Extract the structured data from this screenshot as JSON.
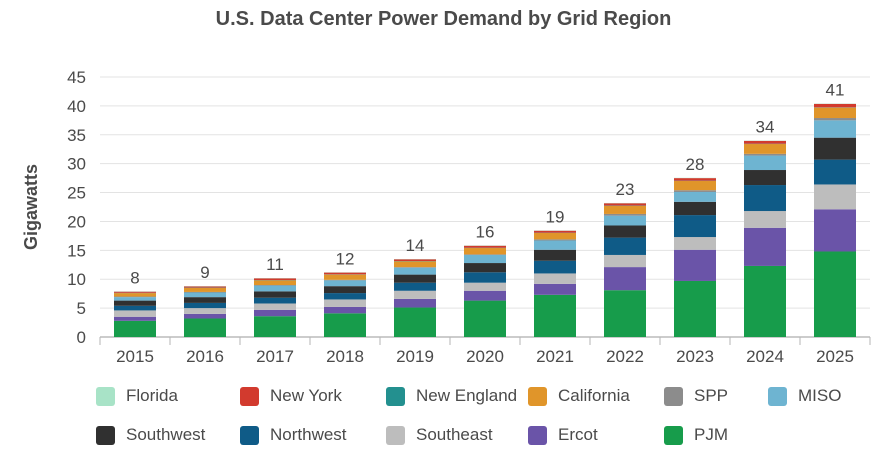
{
  "chart_data": {
    "type": "bar",
    "stacked": true,
    "title": "U.S. Data Center Power Demand by Grid Region",
    "ylabel": "Gigawatts",
    "xlabel": "",
    "ylim": [
      0,
      45
    ],
    "yticks": [
      "0",
      "5",
      "10",
      "15",
      "20",
      "25",
      "30",
      "35",
      "40",
      "45"
    ],
    "grid": true,
    "legend_position": "bottom",
    "categories": [
      "2015",
      "2016",
      "2017",
      "2018",
      "2019",
      "2020",
      "2021",
      "2022",
      "2023",
      "2024",
      "2025"
    ],
    "totals": [
      "8",
      "9",
      "11",
      "12",
      "14",
      "16",
      "19",
      "23",
      "28",
      "34",
      "41"
    ],
    "series": [
      {
        "name": "PJM",
        "color": "#179c4b",
        "values": [
          2.8,
          3.2,
          3.6,
          4.1,
          5.1,
          6.3,
          7.3,
          8.1,
          9.7,
          12.3,
          14.8
        ]
      },
      {
        "name": "Ercot",
        "color": "#6a54a8",
        "values": [
          0.7,
          0.8,
          1.1,
          1.1,
          1.5,
          1.7,
          1.9,
          4.0,
          5.4,
          6.6,
          7.3
        ]
      },
      {
        "name": "Southeast",
        "color": "#bdbdbd",
        "values": [
          1.1,
          1.0,
          1.1,
          1.3,
          1.4,
          1.4,
          1.8,
          2.1,
          2.2,
          2.9,
          4.3
        ]
      },
      {
        "name": "Northwest",
        "color": "#0f5b87",
        "values": [
          0.8,
          0.9,
          1.0,
          1.1,
          1.4,
          1.8,
          2.2,
          3.0,
          3.8,
          4.5,
          4.3
        ]
      },
      {
        "name": "Southwest",
        "color": "#303030",
        "values": [
          0.9,
          1.0,
          1.1,
          1.2,
          1.4,
          1.6,
          1.9,
          2.1,
          2.3,
          2.6,
          3.8
        ]
      },
      {
        "name": "MISO",
        "color": "#6eb4d1",
        "values": [
          0.6,
          0.8,
          1.0,
          1.0,
          1.2,
          1.4,
          1.6,
          1.7,
          1.7,
          2.5,
          3.0
        ]
      },
      {
        "name": "SPP",
        "color": "#8c8c8c",
        "values": [
          0.1,
          0.1,
          0.1,
          0.1,
          0.1,
          0.1,
          0.2,
          0.3,
          0.3,
          0.3,
          0.4
        ]
      },
      {
        "name": "California",
        "color": "#e0952a",
        "values": [
          0.6,
          0.7,
          0.8,
          0.9,
          1.0,
          1.1,
          1.1,
          1.4,
          1.6,
          1.7,
          1.8
        ]
      },
      {
        "name": "New England",
        "color": "#23908f",
        "values": [
          0.05,
          0.05,
          0.05,
          0.05,
          0.05,
          0.05,
          0.05,
          0.05,
          0.05,
          0.05,
          0.05
        ]
      },
      {
        "name": "New York",
        "color": "#d23a2e",
        "values": [
          0.2,
          0.2,
          0.3,
          0.3,
          0.3,
          0.35,
          0.35,
          0.4,
          0.45,
          0.5,
          0.6
        ]
      },
      {
        "name": "Florida",
        "color": "#a8e3c7",
        "values": [
          0.05,
          0.05,
          0.05,
          0.05,
          0.05,
          0.05,
          0.05,
          0.05,
          0.05,
          0.05,
          0.05
        ]
      }
    ],
    "legend_order": [
      "Florida",
      "New York",
      "New England",
      "California",
      "SPP",
      "MISO",
      "Southwest",
      "Northwest",
      "Southeast",
      "Ercot",
      "PJM"
    ]
  }
}
